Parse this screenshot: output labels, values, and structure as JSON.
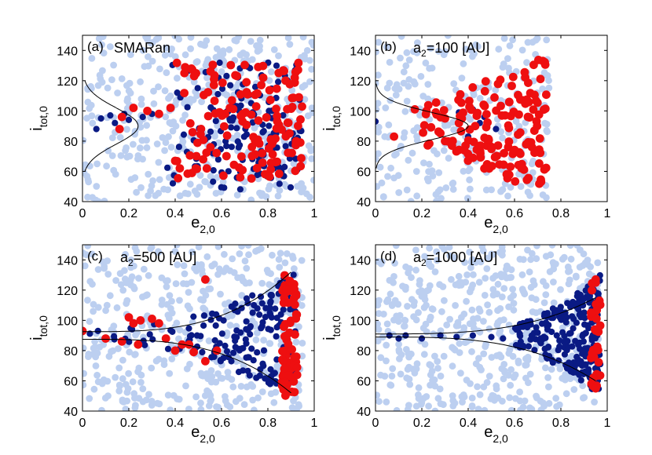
{
  "colors": {
    "background_population": "#bccff0",
    "blue_population": "#0a1a84",
    "red_population": "#ee0f10",
    "curve": "#000000"
  },
  "chart_data": [
    {
      "type": "scatter",
      "panel_label": "(a)",
      "title": "SMARan",
      "subscript_text": "",
      "title_suffix": "",
      "xlabel": "e",
      "xlabel_sub": "2,0",
      "ylabel": "i",
      "ylabel_sub": "tot,0",
      "xlim": [
        0,
        1
      ],
      "ylim": [
        40,
        150
      ],
      "xticks": [
        0,
        0.2,
        0.4,
        0.6,
        0.8,
        1
      ],
      "xtick_labels": [
        "0",
        "0.2",
        "0.4",
        "0.6",
        "0.8",
        "1"
      ],
      "yticks": [
        40,
        60,
        80,
        100,
        120,
        140
      ],
      "ytick_labels": [
        "40",
        "60",
        "80",
        "100",
        "120",
        "140"
      ],
      "grid": false,
      "series": [
        {
          "color": "background_population",
          "distribution": {
            "x": [
              0.0,
              1.0
            ],
            "y": [
              40,
              150
            ],
            "n": 420,
            "seed": 11
          }
        },
        {
          "color": "blue_population",
          "points": [
            [
              0.06,
              88
            ],
            [
              0.08,
              95
            ],
            [
              0.12,
              97
            ],
            [
              0.14,
              92
            ],
            [
              0.18,
              98
            ],
            [
              0.2,
              94
            ],
            [
              0.26,
              96
            ],
            [
              0.3,
              98
            ]
          ],
          "distribution": {
            "x": [
              0.35,
              0.95
            ],
            "y": [
              48,
              132
            ],
            "n": 150,
            "seed": 21,
            "bias": "right"
          }
        },
        {
          "color": "red_population",
          "points": [
            [
              0.16,
              88
            ],
            [
              0.17,
              96
            ],
            [
              0.22,
              102
            ],
            [
              0.28,
              100
            ],
            [
              0.33,
              98
            ],
            [
              0.38,
              102
            ],
            [
              0.42,
              62
            ],
            [
              0.4,
              67
            ],
            [
              0.44,
              125
            ],
            [
              0.47,
              128
            ]
          ],
          "distribution": {
            "x": [
              0.4,
              0.95
            ],
            "y": [
              55,
              132
            ],
            "n": 140,
            "seed": 31,
            "bias": "right"
          }
        }
      ],
      "curve": {
        "type": "gaussian",
        "x0": 0,
        "amplitude": 0.24,
        "center": 90,
        "sigma": 12,
        "ymin": 60,
        "ymax": 120
      }
    },
    {
      "type": "scatter",
      "panel_label": "(b)",
      "title": "a",
      "subscript_text": "2",
      "title_suffix": "=100 [AU]",
      "xlabel": "e",
      "xlabel_sub": "2,0",
      "ylabel": "i",
      "ylabel_sub": "tot,0",
      "xlim": [
        0,
        1
      ],
      "ylim": [
        40,
        150
      ],
      "xticks": [
        0,
        0.2,
        0.4,
        0.6,
        0.8,
        1
      ],
      "xtick_labels": [
        "0",
        "0.2",
        "0.4",
        "0.6",
        "0.8",
        "1"
      ],
      "yticks": [
        40,
        60,
        80,
        100,
        120,
        140
      ],
      "ytick_labels": [
        "40",
        "60",
        "80",
        "100",
        "120",
        "140"
      ],
      "grid": false,
      "series": [
        {
          "color": "background_population",
          "distribution": {
            "x": [
              0.0,
              0.75
            ],
            "y": [
              40,
              150
            ],
            "n": 260,
            "seed": 12
          }
        },
        {
          "color": "blue_population",
          "points": [
            [
              0.0,
              93
            ],
            [
              0.42,
              101
            ],
            [
              0.36,
              99
            ],
            [
              0.47,
              96
            ],
            [
              0.52,
              88
            ],
            [
              0.4,
              83
            ],
            [
              0.45,
              92
            ]
          ]
        },
        {
          "color": "red_population",
          "points": [
            [
              0.08,
              83
            ],
            [
              0.17,
              101
            ],
            [
              0.22,
              100
            ],
            [
              0.26,
              99
            ],
            [
              0.3,
              95
            ],
            [
              0.3,
              80
            ],
            [
              0.33,
              77
            ],
            [
              0.36,
              92
            ]
          ],
          "distribution": {
            "x": [
              0.2,
              0.74
            ],
            "y": [
              50,
              135
            ],
            "n": 150,
            "seed": 32,
            "bias": "wedge"
          }
        }
      ],
      "curve": {
        "type": "gaussian",
        "x0": 0,
        "amplitude": 0.4,
        "center": 90,
        "sigma": 9,
        "ymin": 62,
        "ymax": 118
      }
    },
    {
      "type": "scatter",
      "panel_label": "(c)",
      "title": "a",
      "subscript_text": "2",
      "title_suffix": "=500 [AU]",
      "xlabel": "e",
      "xlabel_sub": "2,0",
      "ylabel": "i",
      "ylabel_sub": "tot,0",
      "xlim": [
        0,
        1
      ],
      "ylim": [
        40,
        150
      ],
      "xticks": [
        0,
        0.2,
        0.4,
        0.6,
        0.8,
        1
      ],
      "xtick_labels": [
        "0",
        "0.2",
        "0.4",
        "0.6",
        "0.8",
        "1"
      ],
      "yticks": [
        40,
        60,
        80,
        100,
        120,
        140
      ],
      "ytick_labels": [
        "40",
        "60",
        "80",
        "100",
        "120",
        "140"
      ],
      "grid": false,
      "series": [
        {
          "color": "background_population",
          "distribution": {
            "x": [
              0.0,
              0.95
            ],
            "y": [
              40,
              150
            ],
            "n": 440,
            "seed": 13
          }
        },
        {
          "color": "blue_population",
          "distribution": {
            "x": [
              0.0,
              0.92
            ],
            "y": [
              55,
              135
            ],
            "n": 170,
            "seed": 23,
            "bias": "funnel"
          }
        },
        {
          "color": "red_population",
          "points": [
            [
              0.0,
              93
            ],
            [
              0.1,
              88
            ],
            [
              0.17,
              86
            ],
            [
              0.2,
              102
            ],
            [
              0.25,
              100
            ],
            [
              0.3,
              101
            ],
            [
              0.33,
              98
            ],
            [
              0.36,
              88
            ],
            [
              0.4,
              80
            ],
            [
              0.43,
              84
            ],
            [
              0.46,
              84
            ],
            [
              0.48,
              79
            ],
            [
              0.53,
              73
            ],
            [
              0.53,
              127
            ],
            [
              0.58,
              80
            ],
            [
              0.24,
              84
            ],
            [
              0.22,
              98
            ]
          ],
          "distribution": {
            "x": [
              0.86,
              0.93
            ],
            "y": [
              48,
              130
            ],
            "n": 70,
            "seed": 33,
            "bias": "edge"
          }
        }
      ],
      "curve": {
        "type": "funnel",
        "x0": 0,
        "center": 90,
        "x1": 0.9,
        "top": 132,
        "bottom": 52,
        "width0": 2.5
      }
    },
    {
      "type": "scatter",
      "panel_label": "(d)",
      "title": "a",
      "subscript_text": "2",
      "title_suffix": "=1000 [AU]",
      "xlabel": "e",
      "xlabel_sub": "2,0",
      "ylabel": "i",
      "ylabel_sub": "tot,0",
      "xlim": [
        0,
        1
      ],
      "ylim": [
        40,
        150
      ],
      "xticks": [
        0,
        0.2,
        0.4,
        0.6,
        0.8,
        1
      ],
      "xtick_labels": [
        "0",
        "0.2",
        "0.4",
        "0.6",
        "0.8",
        "1"
      ],
      "yticks": [
        40,
        60,
        80,
        100,
        120,
        140
      ],
      "ytick_labels": [
        "40",
        "60",
        "80",
        "100",
        "120",
        "140"
      ],
      "grid": false,
      "series": [
        {
          "color": "background_population",
          "distribution": {
            "x": [
              0.0,
              0.97
            ],
            "y": [
              40,
              150
            ],
            "n": 520,
            "seed": 14
          }
        },
        {
          "color": "blue_population",
          "points": [
            [
              0.06,
              90
            ],
            [
              0.1,
              88
            ],
            [
              0.13,
              90
            ],
            [
              0.2,
              88
            ],
            [
              0.28,
              90
            ],
            [
              0.35,
              89
            ],
            [
              0.42,
              90
            ],
            [
              0.5,
              89
            ],
            [
              0.55,
              88
            ]
          ],
          "distribution": {
            "x": [
              0.6,
              0.97
            ],
            "y": [
              52,
              130
            ],
            "n": 220,
            "seed": 24,
            "bias": "funnel-right"
          }
        },
        {
          "color": "red_population",
          "points": [
            [
              0.94,
              62
            ],
            [
              0.95,
              127
            ],
            [
              0.93,
              105
            ],
            [
              0.95,
              55
            ]
          ],
          "distribution": {
            "x": [
              0.93,
              0.97
            ],
            "y": [
              55,
              125
            ],
            "n": 28,
            "seed": 34,
            "bias": "edge"
          }
        }
      ],
      "curve": {
        "type": "funnel",
        "x0": 0,
        "center": 90,
        "x1": 0.95,
        "top": 115,
        "bottom": 60,
        "width0": 1.0
      }
    }
  ]
}
